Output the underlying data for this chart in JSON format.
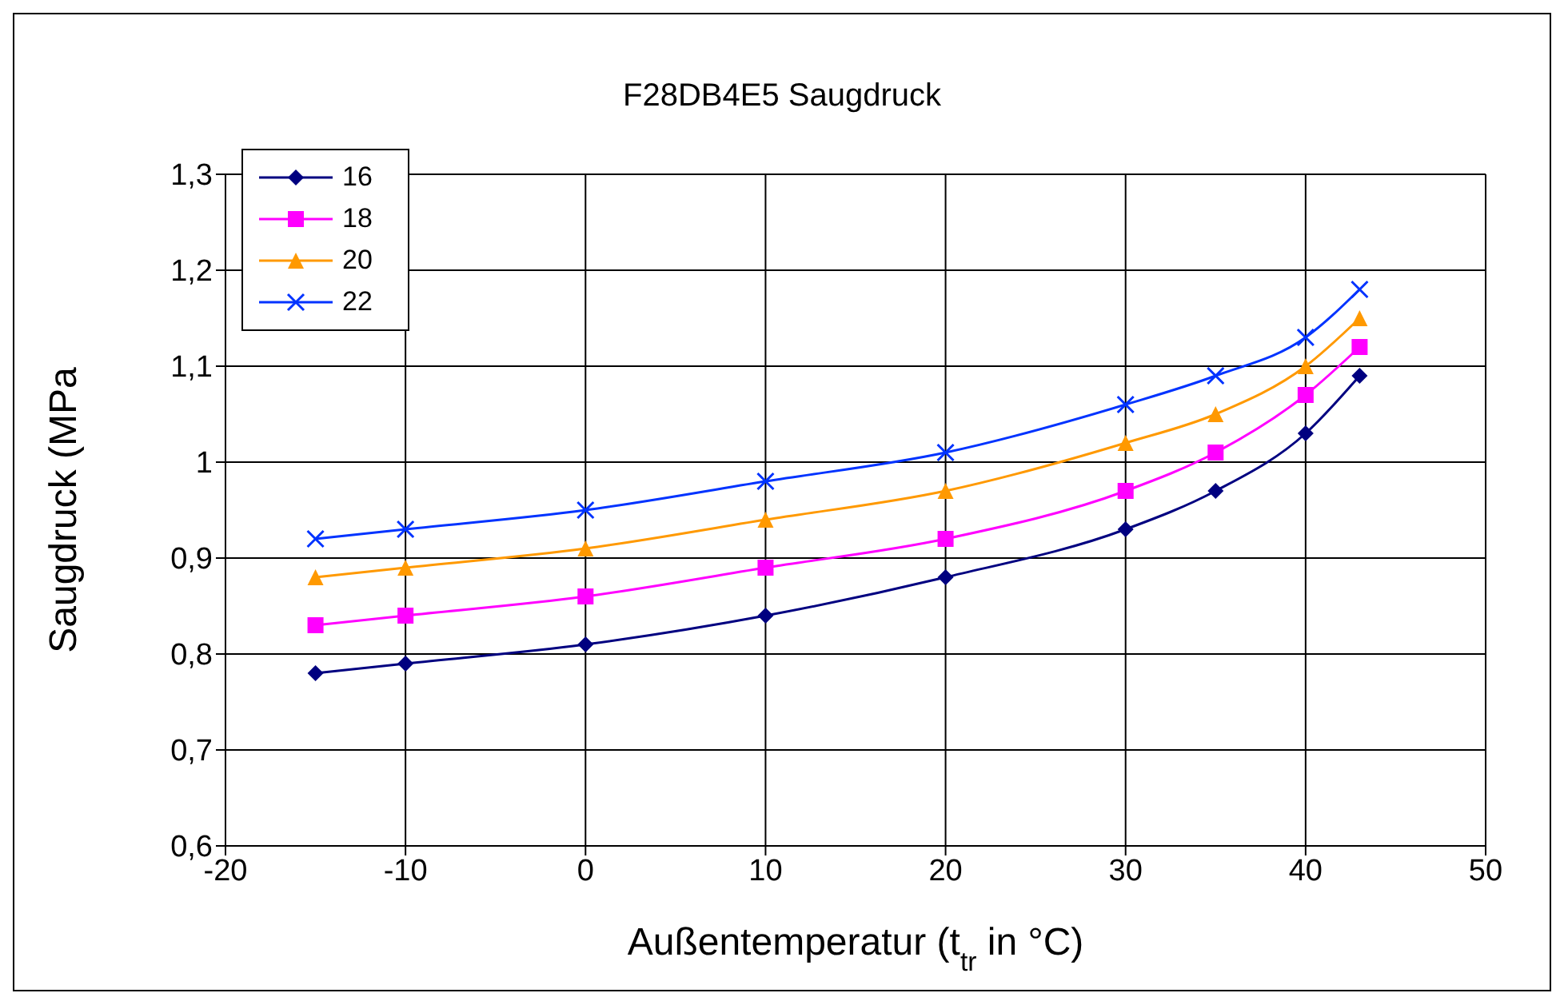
{
  "chart_data": {
    "type": "line",
    "title": "F28DB4E5 Saugdruck",
    "xlabel": "Außentemperatur (t$_{tr}$ in °C)",
    "ylabel": "Saugdruck (MPa",
    "x": [
      -15,
      -10,
      0,
      10,
      20,
      30,
      35,
      40,
      43
    ],
    "series": [
      {
        "name": "16",
        "color": "#000080",
        "marker": "diamond",
        "values": [
          0.78,
          0.79,
          0.81,
          0.84,
          0.88,
          0.93,
          0.97,
          1.03,
          1.09
        ]
      },
      {
        "name": "18",
        "color": "#ff00ff",
        "marker": "square",
        "values": [
          0.83,
          0.84,
          0.86,
          0.89,
          0.92,
          0.97,
          1.01,
          1.07,
          1.12
        ]
      },
      {
        "name": "20",
        "color": "#ff9900",
        "marker": "triangle",
        "values": [
          0.88,
          0.89,
          0.91,
          0.94,
          0.97,
          1.02,
          1.05,
          1.1,
          1.15
        ]
      },
      {
        "name": "22",
        "color": "#0033ff",
        "marker": "cross",
        "values": [
          0.92,
          0.93,
          0.95,
          0.98,
          1.01,
          1.06,
          1.09,
          1.13,
          1.18
        ]
      }
    ],
    "xlim": [
      -20,
      50
    ],
    "xticks": [
      -20,
      -10,
      0,
      10,
      20,
      30,
      40,
      50
    ],
    "ylim": [
      0.6,
      1.3
    ],
    "yticks": [
      {
        "value": 0.6,
        "label": "0,6"
      },
      {
        "value": 0.7,
        "label": "0,7"
      },
      {
        "value": 0.8,
        "label": "0,8"
      },
      {
        "value": 0.9,
        "label": "0,9"
      },
      {
        "value": 1,
        "label": "1"
      },
      {
        "value": 1.1,
        "label": "1,1"
      },
      {
        "value": 1.2,
        "label": "1,2"
      },
      {
        "value": 1.3,
        "label": "1,3"
      }
    ],
    "grid": true,
    "legend": "top left",
    "line_style": "solid"
  }
}
